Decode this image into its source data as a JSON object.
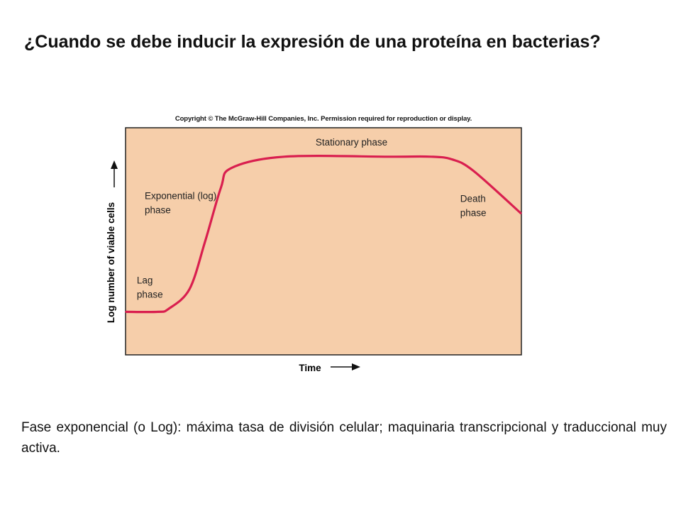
{
  "slide": {
    "title": "¿Cuando se debe inducir la expresión de una proteína en bacterias?",
    "caption": "Fase exponencial (o Log): máxima tasa de división celular; maquinaria transcripcional y traduccional muy activa."
  },
  "figure": {
    "copyright": "Copyright © The McGraw-Hill Companies, Inc. Permission required for reproduction or display."
  },
  "chart_data": {
    "type": "line",
    "xlabel": "Time",
    "ylabel": "Log number of viable cells",
    "x_ticks": false,
    "y_ticks": false,
    "grid": false,
    "legend": "none",
    "background_color": "#f6ceaa",
    "line_color": "#d91f4f",
    "series": [
      {
        "x": [
          0,
          6,
          8,
          12,
          15,
          18,
          20,
          30,
          50,
          58,
          62,
          66,
          75
        ],
        "y": [
          1.5,
          1.5,
          1.6,
          2.3,
          4.0,
          5.9,
          6.6,
          7.0,
          7.0,
          7.0,
          6.9,
          6.5,
          5.0
        ]
      }
    ],
    "xlim": [
      0,
      75
    ],
    "ylim": [
      0,
      8
    ],
    "annotations": [
      {
        "lines": [
          "Lag",
          "phase"
        ],
        "x": 2,
        "y": 2.5
      },
      {
        "lines": [
          "Exponential (log)",
          "phase"
        ],
        "x": 3.5,
        "y": 5.5
      },
      {
        "lines": [
          "Stationary phase"
        ],
        "x": 36,
        "y": 7.4
      },
      {
        "lines": [
          "Death",
          "phase"
        ],
        "x": 63.5,
        "y": 5.4
      }
    ]
  }
}
